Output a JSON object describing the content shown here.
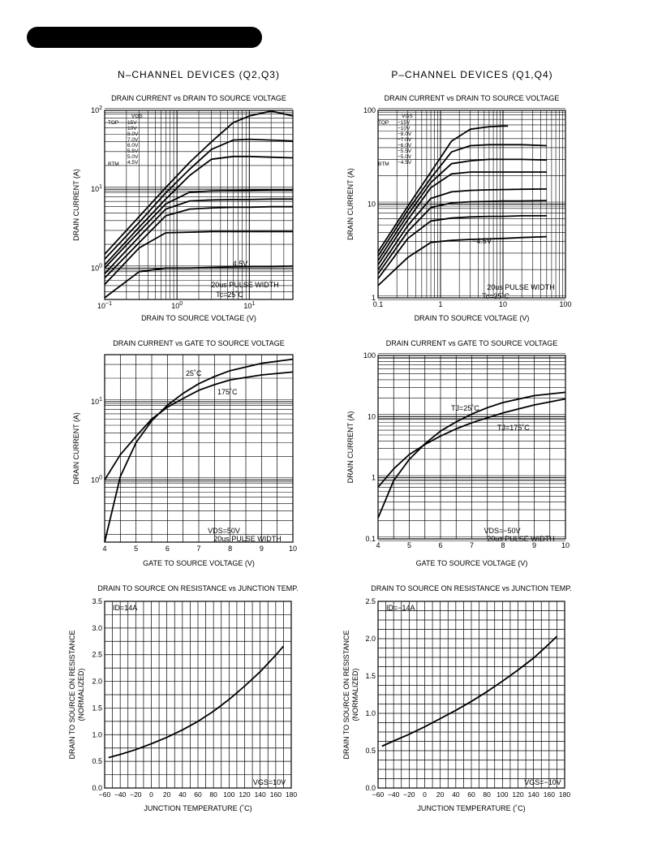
{
  "page": {
    "left_column_title": "N–CHANNEL  DEVICES  (Q2,Q3)",
    "right_column_title": "P–CHANNEL  DEVICES  (Q1,Q4)"
  },
  "chart_data": [
    {
      "id": "n-id-vds",
      "type": "line",
      "title": "DRAIN  CURRENT  vs  DRAIN  TO  SOURCE  VOLTAGE",
      "xlabel": "DRAIN  TO  SOURCE  VOLTAGE  (V)",
      "ylabel": "DRAIN  CURRENT  (A)",
      "xscale": "log",
      "yscale": "log",
      "xlim": [
        0.1,
        40
      ],
      "ylim": [
        0.4,
        100
      ],
      "xticks": [
        {
          "v": 0.1,
          "base": "10",
          "exp": "−1"
        },
        {
          "v": 1,
          "base": "10",
          "exp": "0"
        },
        {
          "v": 10,
          "base": "10",
          "exp": "1"
        }
      ],
      "yticks": [
        {
          "v": 1,
          "base": "10",
          "exp": "0"
        },
        {
          "v": 10,
          "base": "10",
          "exp": "1"
        },
        {
          "v": 100,
          "base": "10",
          "exp": "2"
        }
      ],
      "legend": {
        "header": "VGS",
        "top_label": "TOP",
        "bottom_label": "BTM",
        "entries": [
          "15V",
          "10V",
          "8.0V",
          "7.0V",
          "6.0V",
          "5.5V",
          "5.0V",
          "4.5V"
        ]
      },
      "annotations": [
        "4.5V",
        "20us  PULSE  WIDTH",
        "Tc=25˚C"
      ],
      "series": [
        {
          "x": [
            0.1,
            0.3,
            0.7,
            1.5,
            3,
            6,
            10,
            20,
            40
          ],
          "y": [
            1.5,
            4.5,
            10.5,
            22,
            40,
            70,
            85,
            98,
            85
          ]
        },
        {
          "x": [
            0.1,
            0.3,
            0.7,
            1.5,
            3,
            6,
            10,
            20,
            40
          ],
          "y": [
            1.3,
            3.8,
            9,
            18,
            32,
            42,
            43,
            42,
            41
          ]
        },
        {
          "x": [
            0.1,
            0.3,
            0.7,
            1.5,
            3,
            6,
            10,
            20,
            40
          ],
          "y": [
            1.1,
            3.3,
            7.5,
            15,
            24,
            26,
            26,
            25.5,
            25
          ]
        },
        {
          "x": [
            0.1,
            0.3,
            0.7,
            1.5,
            3,
            6,
            10,
            20,
            40
          ],
          "y": [
            1.0,
            2.9,
            6.5,
            9.2,
            9.5,
            9.6,
            9.7,
            9.8,
            9.8
          ]
        },
        {
          "x": [
            0.1,
            0.3,
            0.7,
            1.5,
            3,
            6,
            10,
            20,
            40
          ],
          "y": [
            0.85,
            2.5,
            5.6,
            7.1,
            7.3,
            7.4,
            7.4,
            7.5,
            7.5
          ]
        },
        {
          "x": [
            0.1,
            0.3,
            0.7,
            1.5,
            3,
            6,
            10,
            20,
            40
          ],
          "y": [
            0.75,
            2.1,
            4.6,
            5.6,
            5.8,
            5.9,
            5.9,
            6.0,
            6.0
          ]
        },
        {
          "x": [
            0.1,
            0.3,
            0.7,
            1.5,
            3,
            6,
            10,
            20,
            40
          ],
          "y": [
            0.62,
            1.8,
            2.8,
            2.85,
            2.9,
            2.9,
            2.9,
            2.9,
            2.9
          ]
        },
        {
          "x": [
            0.1,
            0.3,
            0.7,
            1.5,
            3,
            6,
            10,
            20,
            40
          ],
          "y": [
            0.42,
            0.9,
            1.0,
            1.0,
            1.02,
            1.04,
            1.05,
            1.05,
            1.06
          ]
        }
      ]
    },
    {
      "id": "p-id-vds",
      "type": "line",
      "title": "DRAIN  CURRENT  vs  DRAIN  TO  SOURCE  VOLTAGE",
      "xlabel": "DRAIN  TO  SOURCE  VOLTAGE  (V)",
      "ylabel": "DRAIN  CURRENT  (A)",
      "xscale": "log",
      "yscale": "log",
      "xlim": [
        0.1,
        100
      ],
      "ylim": [
        1,
        100
      ],
      "xticks": [
        {
          "v": 0.1,
          "label": "0.1"
        },
        {
          "v": 1,
          "label": "1"
        },
        {
          "v": 10,
          "label": "10"
        },
        {
          "v": 100,
          "label": "100"
        }
      ],
      "yticks": [
        {
          "v": 1,
          "label": "1"
        },
        {
          "v": 10,
          "label": "10"
        },
        {
          "v": 100,
          "label": "100"
        }
      ],
      "legend": {
        "header": "VGS",
        "top_label": "TOP",
        "bottom_label": "BTM",
        "entries": [
          "−15V",
          "−10V",
          "−8.0V",
          "−7.0V",
          "−6.0V",
          "−5.5V",
          "−5.0V",
          "−4.5V"
        ]
      },
      "annotations": [
        "−4.5V",
        "20us  PULSE  WIDTH",
        "Tc=25˚C"
      ],
      "series": [
        {
          "x": [
            0.1,
            0.3,
            0.7,
            1.5,
            3,
            6,
            10,
            12
          ],
          "y": [
            3.1,
            9.5,
            22,
            47,
            63,
            67,
            68,
            68
          ]
        },
        {
          "x": [
            0.1,
            0.3,
            0.7,
            1.5,
            3,
            6,
            10,
            20,
            50
          ],
          "y": [
            2.8,
            8.6,
            19,
            36,
            42,
            43,
            43,
            43,
            42
          ]
        },
        {
          "x": [
            0.1,
            0.3,
            0.7,
            1.5,
            3,
            6,
            10,
            20,
            50
          ],
          "y": [
            2.5,
            7.7,
            17,
            27,
            29,
            30,
            30,
            30,
            29.5
          ]
        },
        {
          "x": [
            0.1,
            0.3,
            0.7,
            1.5,
            3,
            6,
            10,
            20,
            50
          ],
          "y": [
            2.25,
            6.8,
            15,
            21,
            22,
            22,
            22,
            22,
            22
          ]
        },
        {
          "x": [
            0.1,
            0.3,
            0.7,
            1.5,
            3,
            6,
            10,
            20,
            50
          ],
          "y": [
            2.0,
            5.9,
            11.5,
            13.5,
            14,
            14.2,
            14.3,
            14.4,
            14.5
          ]
        },
        {
          "x": [
            0.1,
            0.3,
            0.7,
            1.5,
            3,
            6,
            10,
            20,
            50
          ],
          "y": [
            1.8,
            5.1,
            9.2,
            10.3,
            10.6,
            10.7,
            10.8,
            10.8,
            10.9
          ]
        },
        {
          "x": [
            0.1,
            0.3,
            0.7,
            1.5,
            3,
            6,
            10,
            20,
            50
          ],
          "y": [
            1.6,
            4.3,
            6.6,
            7.1,
            7.3,
            7.4,
            7.4,
            7.5,
            7.5
          ]
        },
        {
          "x": [
            0.1,
            0.3,
            0.7,
            1.5,
            3,
            6,
            10,
            20,
            50
          ],
          "y": [
            1.35,
            2.7,
            3.9,
            4.1,
            4.2,
            4.25,
            4.3,
            4.4,
            4.5
          ]
        }
      ]
    },
    {
      "id": "n-id-vgs",
      "type": "line",
      "title": "DRAIN  CURRENT  vs  GATE  TO  SOURCE  VOLTAGE",
      "xlabel": "GATE  TO  SOURCE  VOLTAGE  (V)",
      "ylabel": "DRAIN  CURRENT  (A)",
      "xscale": "linear",
      "yscale": "log",
      "xlim": [
        4,
        10
      ],
      "ylim": [
        0.16,
        40
      ],
      "xticks": [
        {
          "v": 4,
          "label": "4"
        },
        {
          "v": 5,
          "label": "5"
        },
        {
          "v": 6,
          "label": "6"
        },
        {
          "v": 7,
          "label": "7"
        },
        {
          "v": 8,
          "label": "8"
        },
        {
          "v": 9,
          "label": "9"
        },
        {
          "v": 10,
          "label": "10"
        }
      ],
      "yticks": [
        {
          "v": 1,
          "base": "10",
          "exp": "0"
        },
        {
          "v": 10,
          "base": "10",
          "exp": "1"
        }
      ],
      "annotations": [
        "VDS=50V",
        "20us  PULSE  WIDTH"
      ],
      "series": [
        {
          "name": "25˚C",
          "x": [
            4,
            4.5,
            5,
            5.5,
            6,
            6.5,
            7,
            7.5,
            8,
            9,
            10
          ],
          "y": [
            0.16,
            1.1,
            3.0,
            5.7,
            9.0,
            12.8,
            17,
            21,
            25,
            31,
            35
          ]
        },
        {
          "name": "175˚C",
          "x": [
            4,
            4.5,
            5,
            5.5,
            6,
            6.5,
            7,
            7.5,
            8,
            9,
            10
          ],
          "y": [
            1.0,
            2.1,
            3.6,
            6.0,
            8.5,
            11.0,
            14,
            16.5,
            19,
            22,
            24
          ]
        }
      ]
    },
    {
      "id": "p-id-vgs",
      "type": "line",
      "title": "DRAIN  CURRENT  vs  GATE  TO  SOURCE  VOLTAGE",
      "xlabel": "GATE  TO  SOURCE  VOLTAGE  (V)",
      "ylabel": "DRAIN  CURRENT  (A)",
      "xscale": "linear",
      "yscale": "log",
      "xlim": [
        4,
        10
      ],
      "ylim": [
        0.1,
        100
      ],
      "xticks": [
        {
          "v": 4,
          "label": "4"
        },
        {
          "v": 5,
          "label": "5"
        },
        {
          "v": 6,
          "label": "6"
        },
        {
          "v": 7,
          "label": "7"
        },
        {
          "v": 8,
          "label": "8"
        },
        {
          "v": 9,
          "label": "9"
        },
        {
          "v": 10,
          "label": "10"
        }
      ],
      "yticks": [
        {
          "v": 0.1,
          "label": "0.1"
        },
        {
          "v": 1,
          "label": "1"
        },
        {
          "v": 10,
          "label": "10"
        },
        {
          "v": 100,
          "label": "100"
        }
      ],
      "annotations": [
        "VDS=−50V",
        "20us  PULSE  WIDTH"
      ],
      "series": [
        {
          "name": "TJ=25˚C",
          "x": [
            4,
            4.5,
            5,
            5.5,
            6,
            6.5,
            7,
            7.5,
            8,
            9,
            10
          ],
          "y": [
            0.22,
            0.9,
            2.0,
            3.6,
            5.8,
            8.2,
            11,
            14,
            17,
            22,
            25
          ]
        },
        {
          "name": "TJ=175˚C",
          "x": [
            4,
            4.5,
            5,
            5.5,
            6,
            6.5,
            7,
            7.5,
            8,
            9,
            10
          ],
          "y": [
            0.7,
            1.4,
            2.4,
            3.5,
            4.8,
            6.3,
            7.9,
            9.6,
            11.5,
            15.5,
            19.5
          ]
        }
      ]
    },
    {
      "id": "n-rdson-tj",
      "type": "line",
      "title": "DRAIN  TO  SOURCE  ON  RESISTANCE  vs  JUNCTION  TEMP.",
      "xlabel": "JUNCTION  TEMPERATURE  (˚C)",
      "ylabel": "DRAIN  TO  SOURCE  ON  RESISTANCE",
      "ylabel2": "(NORMALIZED)",
      "xscale": "linear",
      "yscale": "linear",
      "xlim": [
        -60,
        180
      ],
      "ylim": [
        0,
        3.5
      ],
      "xticks": [
        {
          "v": -60,
          "label": "−60"
        },
        {
          "v": -40,
          "label": "−40"
        },
        {
          "v": -20,
          "label": "−20"
        },
        {
          "v": 0,
          "label": "0"
        },
        {
          "v": 20,
          "label": "20"
        },
        {
          "v": 40,
          "label": "40"
        },
        {
          "v": 60,
          "label": "60"
        },
        {
          "v": 80,
          "label": "80"
        },
        {
          "v": 100,
          "label": "100"
        },
        {
          "v": 120,
          "label": "120"
        },
        {
          "v": 140,
          "label": "140"
        },
        {
          "v": 160,
          "label": "160"
        },
        {
          "v": 180,
          "label": "180"
        }
      ],
      "yticks": [
        {
          "v": 0,
          "label": "0.0"
        },
        {
          "v": 0.5,
          "label": "0.5"
        },
        {
          "v": 1,
          "label": "1.0"
        },
        {
          "v": 1.5,
          "label": "1.5"
        },
        {
          "v": 2,
          "label": "2.0"
        },
        {
          "v": 2.5,
          "label": "2.5"
        },
        {
          "v": 3,
          "label": "3.0"
        },
        {
          "v": 3.5,
          "label": "3.5"
        }
      ],
      "annotations": [
        "ID=14A",
        "VGS=10V"
      ],
      "series": [
        {
          "x": [
            -55,
            -40,
            -20,
            0,
            20,
            40,
            60,
            80,
            100,
            120,
            140,
            160,
            170
          ],
          "y": [
            0.57,
            0.63,
            0.72,
            0.83,
            0.95,
            1.09,
            1.25,
            1.44,
            1.66,
            1.91,
            2.18,
            2.49,
            2.66
          ]
        }
      ]
    },
    {
      "id": "p-rdson-tj",
      "type": "line",
      "title": "DRAIN  TO  SOURCE  ON  RESISTANCE  vs  JUNCTION  TEMP.",
      "xlabel": "JUNCTION  TEMPERATURE  (˚C)",
      "ylabel": "DRAIN  TO  SOURCE  ON  RESISTANCE",
      "ylabel2": "(NORMALIZED)",
      "xscale": "linear",
      "yscale": "linear",
      "xlim": [
        -60,
        180
      ],
      "ylim": [
        0,
        2.5
      ],
      "xticks": [
        {
          "v": -60,
          "label": "−60"
        },
        {
          "v": -40,
          "label": "−40"
        },
        {
          "v": -20,
          "label": "−20"
        },
        {
          "v": 0,
          "label": "0"
        },
        {
          "v": 20,
          "label": "20"
        },
        {
          "v": 40,
          "label": "40"
        },
        {
          "v": 60,
          "label": "60"
        },
        {
          "v": 80,
          "label": "80"
        },
        {
          "v": 100,
          "label": "100"
        },
        {
          "v": 120,
          "label": "120"
        },
        {
          "v": 140,
          "label": "140"
        },
        {
          "v": 160,
          "label": "160"
        },
        {
          "v": 180,
          "label": "180"
        }
      ],
      "yticks": [
        {
          "v": 0,
          "label": "0.0"
        },
        {
          "v": 0.5,
          "label": "0.5"
        },
        {
          "v": 1,
          "label": "1.0"
        },
        {
          "v": 1.5,
          "label": "1.5"
        },
        {
          "v": 2,
          "label": "2.0"
        },
        {
          "v": 2.5,
          "label": "2.5"
        }
      ],
      "annotations": [
        "ID=−14A",
        "VGS=−10V"
      ],
      "series": [
        {
          "x": [
            -55,
            -40,
            -20,
            0,
            20,
            40,
            60,
            80,
            100,
            120,
            140,
            160,
            170
          ],
          "y": [
            0.56,
            0.63,
            0.72,
            0.82,
            0.93,
            1.04,
            1.16,
            1.29,
            1.43,
            1.58,
            1.74,
            1.93,
            2.03
          ]
        }
      ]
    }
  ]
}
